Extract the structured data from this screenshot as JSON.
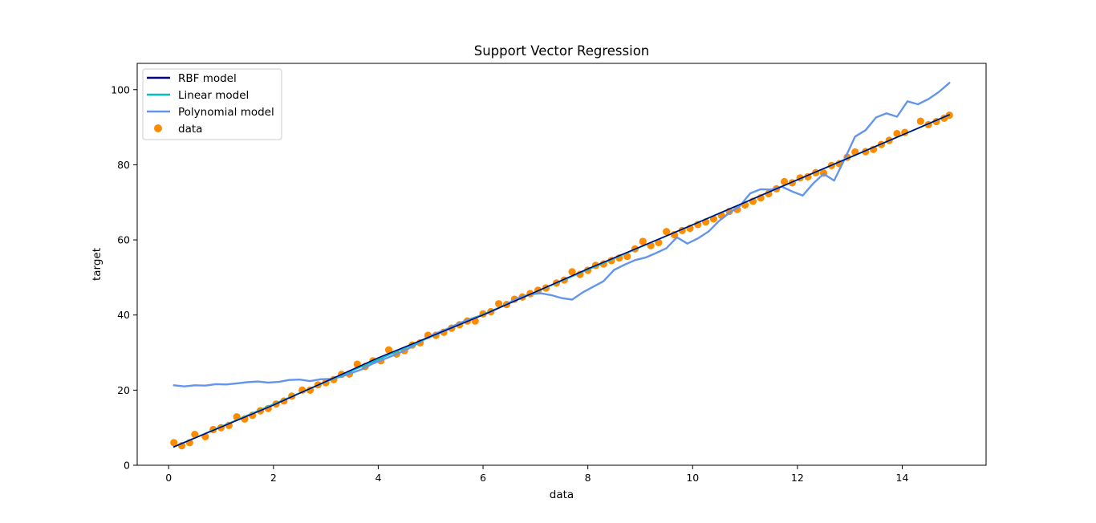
{
  "chart_data": {
    "type": "line",
    "title": "Support Vector Regression",
    "xlabel": "data",
    "ylabel": "target",
    "xlim": [
      -0.6,
      15.6
    ],
    "ylim": [
      0,
      107
    ],
    "xticks": [
      0,
      2,
      4,
      6,
      8,
      10,
      12,
      14
    ],
    "yticks": [
      0,
      20,
      40,
      60,
      80,
      100
    ],
    "grid": false,
    "legend_position": "top-left",
    "colors": {
      "rbf": "#000080",
      "linear": "#00bfbf",
      "poly": "#6495ed",
      "data": "#ff8c00"
    },
    "series": [
      {
        "name": "RBF model",
        "kind": "line",
        "x": [
          0.1,
          2.0,
          4.0,
          6.0,
          8.0,
          10.0,
          12.0,
          14.9
        ],
        "y": [
          4.9,
          16.0,
          28.6,
          40.0,
          52.3,
          64.0,
          76.0,
          93.3
        ]
      },
      {
        "name": "Linear model",
        "kind": "line",
        "x": [
          0.1,
          14.9
        ],
        "y": [
          4.9,
          93.3
        ]
      },
      {
        "name": "Polynomial model",
        "kind": "line",
        "x": [
          0.1,
          0.3,
          0.5,
          0.7,
          0.9,
          1.1,
          1.3,
          1.5,
          1.7,
          1.9,
          2.1,
          2.3,
          2.5,
          2.7,
          2.9,
          3.1,
          3.3,
          3.5,
          3.7,
          3.9,
          4.1,
          4.3,
          4.5,
          4.7,
          4.9,
          5.1,
          5.3,
          5.5,
          5.7,
          5.9,
          6.1,
          6.3,
          6.5,
          6.7,
          6.9,
          7.1,
          7.3,
          7.5,
          7.7,
          7.9,
          8.1,
          8.3,
          8.5,
          8.7,
          8.9,
          9.1,
          9.3,
          9.5,
          9.7,
          9.9,
          10.1,
          10.3,
          10.5,
          10.7,
          10.9,
          11.1,
          11.3,
          11.5,
          11.7,
          11.9,
          12.1,
          12.3,
          12.5,
          12.7,
          12.9,
          13.1,
          13.3,
          13.5,
          13.7,
          13.9,
          14.1,
          14.3,
          14.5,
          14.7,
          14.9
        ],
        "y": [
          21.3,
          21.0,
          21.3,
          21.2,
          21.6,
          21.5,
          21.8,
          22.1,
          22.3,
          22.0,
          22.2,
          22.7,
          22.8,
          22.4,
          22.9,
          23.0,
          23.6,
          24.6,
          25.6,
          27.1,
          28.2,
          29.3,
          30.5,
          32.0,
          33.7,
          35.1,
          36.2,
          37.5,
          38.7,
          39.6,
          40.6,
          41.9,
          43.3,
          44.7,
          45.5,
          45.8,
          45.3,
          44.5,
          44.1,
          46.0,
          47.5,
          49.0,
          52.0,
          53.4,
          54.6,
          55.3,
          56.5,
          57.8,
          60.7,
          59.0,
          60.4,
          62.2,
          65.0,
          67.2,
          69.0,
          72.4,
          73.5,
          73.4,
          74.2,
          72.9,
          71.8,
          75.0,
          77.6,
          75.8,
          81.5,
          87.5,
          89.2,
          92.6,
          93.7,
          92.8,
          96.9,
          96.1,
          97.5,
          99.4,
          101.8
        ]
      },
      {
        "name": "data",
        "kind": "scatter",
        "x": [
          0.1,
          0.25,
          0.4,
          0.5,
          0.7,
          0.85,
          1.0,
          1.15,
          1.3,
          1.45,
          1.6,
          1.75,
          1.9,
          2.05,
          2.2,
          2.35,
          2.55,
          2.7,
          2.85,
          3.0,
          3.15,
          3.3,
          3.45,
          3.6,
          3.75,
          3.9,
          4.05,
          4.2,
          4.35,
          4.5,
          4.65,
          4.8,
          4.95,
          5.1,
          5.25,
          5.4,
          5.55,
          5.7,
          5.85,
          6.0,
          6.15,
          6.3,
          6.45,
          6.6,
          6.75,
          6.9,
          7.05,
          7.2,
          7.4,
          7.55,
          7.7,
          7.85,
          8.0,
          8.15,
          8.3,
          8.45,
          8.6,
          8.75,
          8.9,
          9.05,
          9.2,
          9.35,
          9.5,
          9.65,
          9.8,
          9.95,
          10.1,
          10.25,
          10.4,
          10.55,
          10.7,
          10.85,
          11.0,
          11.15,
          11.3,
          11.45,
          11.6,
          11.75,
          11.9,
          12.05,
          12.2,
          12.35,
          12.5,
          12.65,
          12.8,
          12.95,
          13.1,
          13.3,
          13.45,
          13.6,
          13.75,
          13.9,
          14.05,
          14.35,
          14.5,
          14.65,
          14.8,
          14.9
        ],
        "y": [
          6.0,
          5.2,
          6.0,
          8.2,
          7.6,
          9.5,
          10.0,
          10.6,
          12.9,
          12.3,
          13.3,
          14.5,
          15.1,
          16.3,
          17.1,
          18.4,
          20.0,
          20.0,
          21.4,
          22.0,
          22.8,
          24.2,
          24.3,
          26.9,
          26.3,
          27.8,
          27.8,
          30.7,
          29.6,
          30.5,
          32.0,
          32.6,
          34.6,
          34.6,
          35.4,
          36.5,
          37.4,
          38.4,
          38.4,
          40.3,
          40.9,
          43.0,
          42.8,
          44.2,
          44.8,
          45.7,
          46.6,
          47.2,
          48.5,
          49.3,
          51.5,
          50.8,
          51.9,
          53.2,
          53.6,
          54.5,
          55.2,
          55.6,
          57.6,
          59.6,
          58.5,
          59.3,
          62.2,
          61.4,
          62.5,
          63.1,
          64.1,
          64.8,
          65.6,
          66.5,
          67.6,
          68.1,
          69.3,
          70.3,
          71.2,
          72.3,
          73.6,
          75.5,
          75.2,
          76.5,
          76.8,
          77.9,
          77.8,
          79.8,
          80.3,
          82.0,
          83.4,
          83.5,
          84.1,
          85.4,
          86.5,
          88.3,
          88.6,
          91.6,
          90.7,
          91.5,
          92.4,
          93.2
        ]
      }
    ]
  }
}
